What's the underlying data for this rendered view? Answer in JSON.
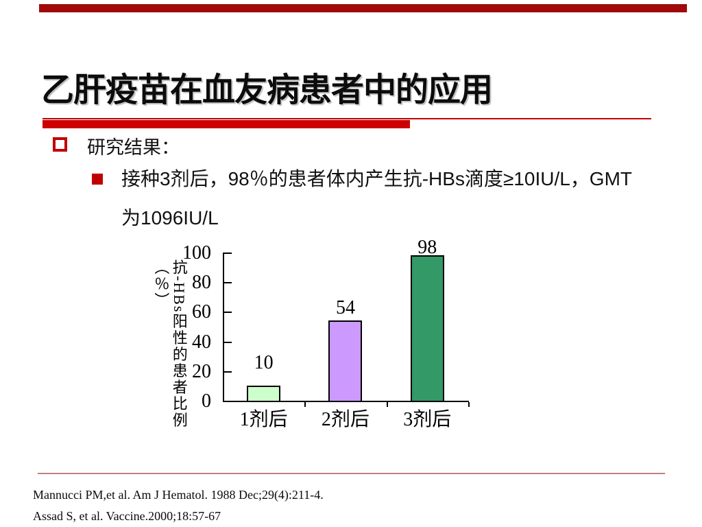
{
  "slide": {
    "title": "乙肝疫苗在血友病患者中的应用",
    "bullet1": "研究结果：",
    "bullet2_line1": "接种3剂后，98％的患者体内产生抗-HBs滴度≥10IU/L，GMT",
    "bullet2_line2": "为1096IU/L",
    "references": [
      "Mannucci PM,et al. Am J Hematol. 1988 Dec;29(4):211-4.",
      "Assad S, et al. Vaccine.2000;18:57-67"
    ]
  },
  "colors": {
    "top_band": "#A00A0A",
    "accent_red": "#CC0000",
    "bullet_red": "#C00000",
    "footer_line": "#C08080",
    "axis": "#000000"
  },
  "chart_data": {
    "type": "bar",
    "categories": [
      "1剂后",
      "2剂后",
      "3剂后"
    ],
    "values": [
      10,
      54,
      98
    ],
    "data_labels": [
      "10",
      "54",
      "98"
    ],
    "bar_colors": [
      "#CCFFCC",
      "#CC99FF",
      "#339966"
    ],
    "title": "",
    "xlabel": "",
    "ylabel": "抗-HBs阳性的患者比例（％）",
    "yticks": [
      0,
      20,
      40,
      60,
      80,
      100
    ],
    "ylim": [
      0,
      100
    ],
    "grid": false,
    "legend": false
  }
}
